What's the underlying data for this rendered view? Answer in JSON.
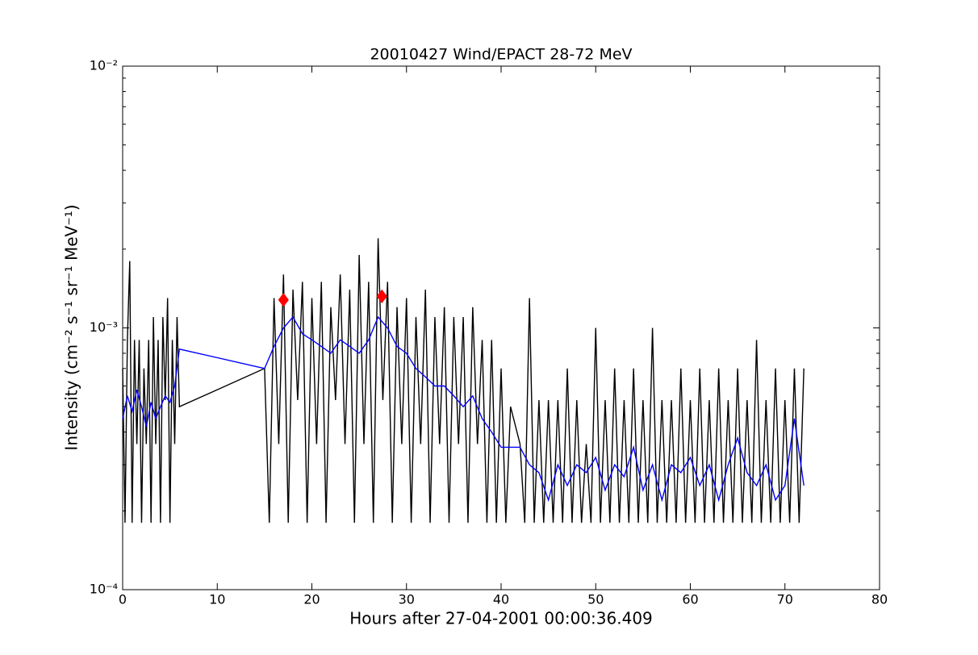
{
  "chart_data": {
    "type": "line",
    "title": "20010427 Wind/EPACT 28-72 MeV",
    "x_label": "Hours after 27-04-2001 00:00:36.409",
    "y_label": "Intensity (cm⁻² s⁻¹ sr⁻¹ MeV⁻¹)",
    "ylog": true,
    "xlim": [
      0,
      80
    ],
    "xticks": [
      0,
      10,
      20,
      30,
      40,
      50,
      60,
      70,
      80
    ],
    "ylim": [
      0.0001,
      0.01
    ],
    "yticks": [
      {
        "value": 0.0001,
        "label": "10⁻⁴"
      },
      {
        "value": 0.001,
        "label": "10⁻³"
      },
      {
        "value": 0.01,
        "label": "10⁻²"
      }
    ],
    "yminorticks": [
      0.0002,
      0.0003,
      0.0004,
      0.0005,
      0.0006,
      0.0007,
      0.0008,
      0.0009,
      0.002,
      0.003,
      0.004,
      0.005,
      0.006,
      0.007,
      0.008,
      0.009
    ],
    "series": [
      {
        "color": "#000000",
        "line": true,
        "x": [
          0,
          0.25,
          0.5,
          0.75,
          1,
          1.25,
          1.5,
          1.75,
          2,
          2.25,
          2.5,
          2.75,
          3,
          3.25,
          3.5,
          3.75,
          4,
          4.25,
          4.5,
          4.75,
          5,
          5.25,
          5.5,
          5.75,
          6,
          15,
          15.5,
          16,
          16.5,
          17,
          17.5,
          18,
          18.5,
          19,
          19.5,
          20,
          20.5,
          21,
          21.5,
          22,
          22.5,
          23,
          23.5,
          24,
          24.5,
          25,
          25.5,
          26,
          26.5,
          27,
          27.5,
          28,
          28.5,
          29,
          29.5,
          30,
          30.5,
          31,
          31.5,
          32,
          32.5,
          33,
          33.5,
          34,
          34.5,
          35,
          35.5,
          36,
          36.5,
          37,
          37.5,
          38,
          38.5,
          39,
          39.5,
          40,
          40.5,
          41,
          42,
          42.5,
          43,
          43.5,
          44,
          44.5,
          45,
          45.5,
          46,
          46.5,
          47,
          47.5,
          48,
          48.5,
          49,
          49.5,
          50,
          50.5,
          51,
          51.5,
          52,
          52.5,
          53,
          53.5,
          54,
          54.5,
          55,
          55.5,
          56,
          56.5,
          57,
          57.5,
          58,
          58.5,
          59,
          59.5,
          60,
          60.5,
          61,
          61.5,
          62,
          62.5,
          63,
          63.5,
          64,
          64.5,
          65,
          65.5,
          66,
          66.5,
          67,
          67.5,
          68,
          68.5,
          69,
          69.5,
          70,
          70.5,
          71,
          71.5,
          72
        ],
        "values": [
          0.0007,
          0.00018,
          0.0009,
          0.0018,
          0.00018,
          0.0009,
          0.00036,
          0.0009,
          0.00018,
          0.0007,
          0.00036,
          0.0009,
          0.00018,
          0.0011,
          0.00036,
          0.0009,
          0.00018,
          0.0011,
          0.00053,
          0.0013,
          0.00018,
          0.0009,
          0.00036,
          0.0011,
          0.0005,
          0.0007,
          0.00018,
          0.0013,
          0.00036,
          0.0016,
          0.00018,
          0.0014,
          0.00053,
          0.0015,
          0.00018,
          0.0013,
          0.00036,
          0.0015,
          0.00018,
          0.0012,
          0.00053,
          0.0016,
          0.00036,
          0.0014,
          0.00018,
          0.0019,
          0.00036,
          0.0015,
          0.00018,
          0.0022,
          0.00053,
          0.0015,
          0.00018,
          0.0012,
          0.00036,
          0.0013,
          0.00018,
          0.0011,
          0.00036,
          0.0014,
          0.00018,
          0.0011,
          0.00036,
          0.0012,
          0.00018,
          0.0011,
          0.00036,
          0.0011,
          0.00018,
          0.0012,
          0.00036,
          0.0009,
          0.00018,
          0.0009,
          0.00018,
          0.0007,
          0.00018,
          0.0005,
          0.00036,
          0.00018,
          0.0013,
          0.00018,
          0.00053,
          0.00018,
          0.00053,
          0.00018,
          0.00053,
          0.00018,
          0.0007,
          0.00018,
          0.00053,
          0.00018,
          0.00036,
          0.00018,
          0.001,
          0.00018,
          0.00053,
          0.00018,
          0.0007,
          0.00018,
          0.00053,
          0.00018,
          0.0007,
          0.00018,
          0.00053,
          0.00018,
          0.001,
          0.00018,
          0.00053,
          0.00018,
          0.00053,
          0.00018,
          0.0007,
          0.00018,
          0.00053,
          0.00018,
          0.0007,
          0.00018,
          0.00053,
          0.00018,
          0.0007,
          0.00018,
          0.00053,
          0.00018,
          0.0007,
          0.00018,
          0.00053,
          0.00018,
          0.0009,
          0.00018,
          0.00053,
          0.00018,
          0.0007,
          0.00018,
          0.00053,
          0.00018,
          0.0007,
          0.00018,
          0.0007
        ]
      },
      {
        "color": "#0000ff",
        "line": true,
        "x": [
          0,
          0.5,
          1,
          1.5,
          2,
          2.5,
          3,
          3.5,
          4,
          4.5,
          5,
          5.5,
          6,
          15,
          16,
          17,
          18,
          19,
          20,
          21,
          22,
          23,
          24,
          25,
          26,
          27,
          28,
          29,
          30,
          31,
          32,
          33,
          34,
          35,
          36,
          37,
          38,
          39,
          40,
          41,
          42,
          43,
          44,
          45,
          46,
          47,
          48,
          49,
          50,
          51,
          52,
          53,
          54,
          55,
          56,
          57,
          58,
          59,
          60,
          61,
          62,
          63,
          64,
          65,
          66,
          67,
          68,
          69,
          70,
          71,
          72
        ],
        "values": [
          0.00045,
          0.00055,
          0.00048,
          0.00058,
          0.0005,
          0.00042,
          0.00052,
          0.00045,
          0.0005,
          0.00055,
          0.00052,
          0.0006,
          0.00083,
          0.0007,
          0.00085,
          0.001,
          0.0011,
          0.00095,
          0.0009,
          0.00085,
          0.0008,
          0.0009,
          0.00085,
          0.0008,
          0.0009,
          0.0011,
          0.001,
          0.00085,
          0.0008,
          0.0007,
          0.00065,
          0.0006,
          0.0006,
          0.00055,
          0.0005,
          0.00055,
          0.00045,
          0.0004,
          0.00035,
          0.00035,
          0.00035,
          0.0003,
          0.00028,
          0.00022,
          0.0003,
          0.00025,
          0.0003,
          0.00028,
          0.00032,
          0.00024,
          0.0003,
          0.00027,
          0.00035,
          0.00024,
          0.0003,
          0.00022,
          0.0003,
          0.00028,
          0.00032,
          0.00025,
          0.0003,
          0.00022,
          0.0003,
          0.00038,
          0.00028,
          0.00025,
          0.0003,
          0.00022,
          0.00025,
          0.00045,
          0.00025
        ]
      },
      {
        "color": "#ff0000",
        "line": false,
        "marker": "diamond",
        "x": [
          17.0,
          27.4
        ],
        "values": [
          0.00128,
          0.00132
        ]
      }
    ]
  }
}
